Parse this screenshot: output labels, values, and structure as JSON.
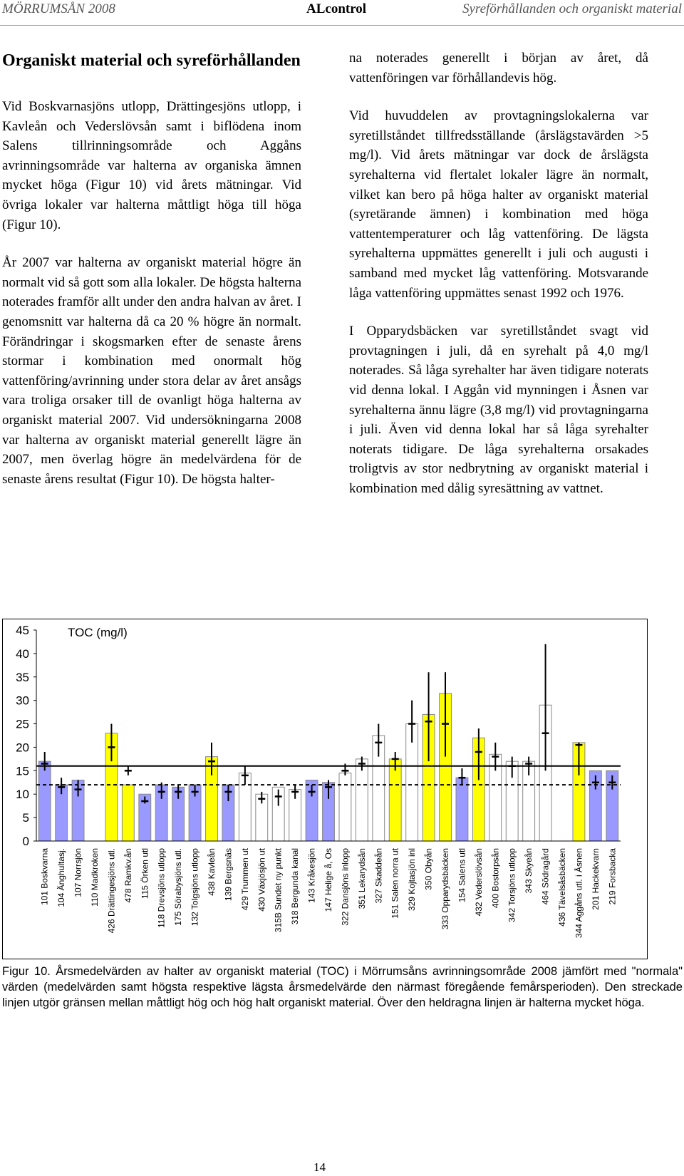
{
  "header": {
    "left": "MÖRRUMSÅN 2008",
    "center": "ALcontrol",
    "right": "Syreförhållanden och organiskt material"
  },
  "left_column": {
    "heading": "Organiskt material och syreförhållanden",
    "paragraphs": [
      "Vid Boskvarnasjöns utlopp, Drättingesjöns utlopp, i Kavleån och Vederslövsån samt i biflödena inom Salens tillrinningsområde och Aggåns avrinningsområde var halterna av organiska ämnen mycket höga (Figur 10) vid årets mätningar. Vid övriga lokaler var halterna måttligt höga till höga (Figur 10).",
      "År 2007 var halterna av organiskt material högre än normalt vid så gott som alla lokaler. De högsta halterna noterades framför allt under den andra halvan av året. I genomsnitt var halterna då ca 20 % högre än normalt. Förändringar i skogsmarken efter de senaste årens stormar i kombination med onormalt hög vattenföring/avrinning under stora delar av året ansågs vara troliga orsaker till de ovanligt höga halterna av organiskt material 2007. Vid undersökningarna 2008 var halterna av organiskt material generellt lägre än 2007, men överlag högre än medelvärdena för de senaste årens resultat (Figur 10). De högsta halter-"
    ]
  },
  "right_column": {
    "paragraphs": [
      "na noterades generellt i början av året, då vattenföringen var förhållandevis hög.",
      "Vid huvuddelen av provtagningslokalerna var syretillståndet tillfredsställande (årslägstavärden >5 mg/l). Vid årets mätningar var dock de årslägsta syrehalterna vid flertalet lokaler lägre än normalt, vilket kan bero på höga halter av organiskt material (syretärande ämnen) i kombination med höga vattentemperaturer och låg vattenföring. De lägsta syrehalterna uppmättes generellt i juli och augusti i samband med mycket låg vattenföring. Motsvarande låga vattenföring uppmättes senast 1992 och 1976.",
      "I Opparydsbäcken var syretillståndet svagt vid provtagningen i juli, då en syrehalt på 4,0 mg/l noterades. Så låga syrehalter har även tidigare noterats vid denna lokal. I Aggån vid mynningen i Åsnen var syrehalterna ännu lägre (3,8 mg/l) vid provtagningarna i juli. Även vid denna lokal har så låga syrehalter noterats tidigare. De låga syrehalterna orsakades troligtvis av stor nedbrytning av organiskt material i kombination med dålig syresättning av vattnet."
    ]
  },
  "chart_data": {
    "type": "bar",
    "title": "TOC (mg/l)",
    "categories": [
      "101 Boskvarna",
      "104 Änghultasj.",
      "107 Norrsjön",
      "110 Madkroken",
      "426 Drättingesjöns utl.",
      "478 Ramkv.ån",
      "115 Örken utl",
      "118 Drevsjöns utlopp",
      "175 Sörabysjöns utl.",
      "132 Tolgsjöns utlopp",
      "438 Kavleån",
      "139 Bergsnäs",
      "429 Trummen ut",
      "430 Växjösjön ut",
      "315B Sundet ny punkt",
      "318 Bergunda kanal",
      "143 Kråkesjön",
      "147 Helige å, Os",
      "322 Dansjöns inlopp",
      "351 Lekarydsån",
      "327 Skaddeån",
      "151 Salen norra ut",
      "329 Kojtasjön inl",
      "350 Obyån",
      "333 Opparydsbäcken",
      "154 Salens utl",
      "432 Vederslövsån",
      "400 Bostorpsån",
      "342 Torsjöns utlopp",
      "343 Skyeån",
      "464 Södragård",
      "436 Tävelsåsbäcken",
      "344 Aggåns utl. i Åsnen",
      "201 Hackekvarn",
      "219 Forsbacka"
    ],
    "values": [
      17,
      12,
      13,
      0,
      23,
      12,
      10,
      12,
      11.5,
      12,
      18,
      12,
      14.5,
      10,
      11.5,
      11,
      13,
      12.5,
      14.5,
      17.5,
      22.5,
      17.5,
      25,
      27,
      31.5,
      13.5,
      22,
      18.5,
      17,
      17,
      29,
      0,
      21,
      15,
      15
    ],
    "colors": [
      "#9999ff",
      "#9999ff",
      "#9999ff",
      "#9999ff",
      "#ffff00",
      "#ffff00",
      "#9999ff",
      "#9999ff",
      "#9999ff",
      "#9999ff",
      "#ffff00",
      "#9999ff",
      "#ffffff",
      "#ffffff",
      "#ffffff",
      "#ffffff",
      "#9999ff",
      "#9999ff",
      "#ffffff",
      "#ffffff",
      "#ffffff",
      "#ffff00",
      "#ffffff",
      "#ffff00",
      "#ffff00",
      "#9999ff",
      "#ffff00",
      "#ffffff",
      "#ffffff",
      "#ffffff",
      "#ffffff",
      "#ffffff",
      "#ffff00",
      "#9999ff",
      "#9999ff"
    ],
    "normal_mean": [
      16.5,
      11.5,
      11,
      null,
      20,
      15,
      8.5,
      10.5,
      10.5,
      10.5,
      17,
      10.5,
      14,
      9,
      9.5,
      10.5,
      10.5,
      11.5,
      15,
      16.5,
      21,
      17.5,
      25,
      25.5,
      25,
      13.5,
      19,
      18,
      16,
      16.5,
      23,
      null,
      20.5,
      12.5,
      12.5
    ],
    "normal_min": [
      15,
      10,
      9.5,
      null,
      17,
      14,
      8,
      9,
      9,
      9.5,
      14,
      8.5,
      12,
      8,
      7.5,
      9,
      9.5,
      9,
      14,
      15,
      18,
      15,
      21,
      17,
      18,
      12,
      13,
      15,
      13.5,
      14,
      15,
      null,
      14,
      11,
      11
    ],
    "normal_max": [
      19,
      13.5,
      13,
      null,
      25,
      16,
      9.5,
      12.5,
      12,
      12,
      21,
      12,
      16,
      10.5,
      11,
      12,
      12,
      13,
      16.5,
      18,
      25,
      19,
      30,
      36,
      36,
      15.5,
      24,
      21,
      18,
      18,
      42,
      null,
      21,
      14,
      14
    ],
    "reference_lines": [
      {
        "value": 16,
        "style": "solid"
      },
      {
        "value": 12,
        "style": "dashed"
      }
    ],
    "ylim": [
      0,
      45
    ],
    "yticks": [
      0,
      5,
      10,
      15,
      20,
      25,
      30,
      35,
      40,
      45
    ]
  },
  "caption": "Figur 10. Årsmedelvärden av halter av organiskt material (TOC) i Mörrumsåns avrinningsområde 2008 jämfört med \"normala\" värden (medelvärden samt högsta respektive lägsta årsmedelvärde den närmast föregående femårsperioden). Den streckade linjen utgör gränsen mellan måttligt hög och hög halt organiskt material. Över den heldragna linjen är halterna mycket höga.",
  "page_number": "14"
}
